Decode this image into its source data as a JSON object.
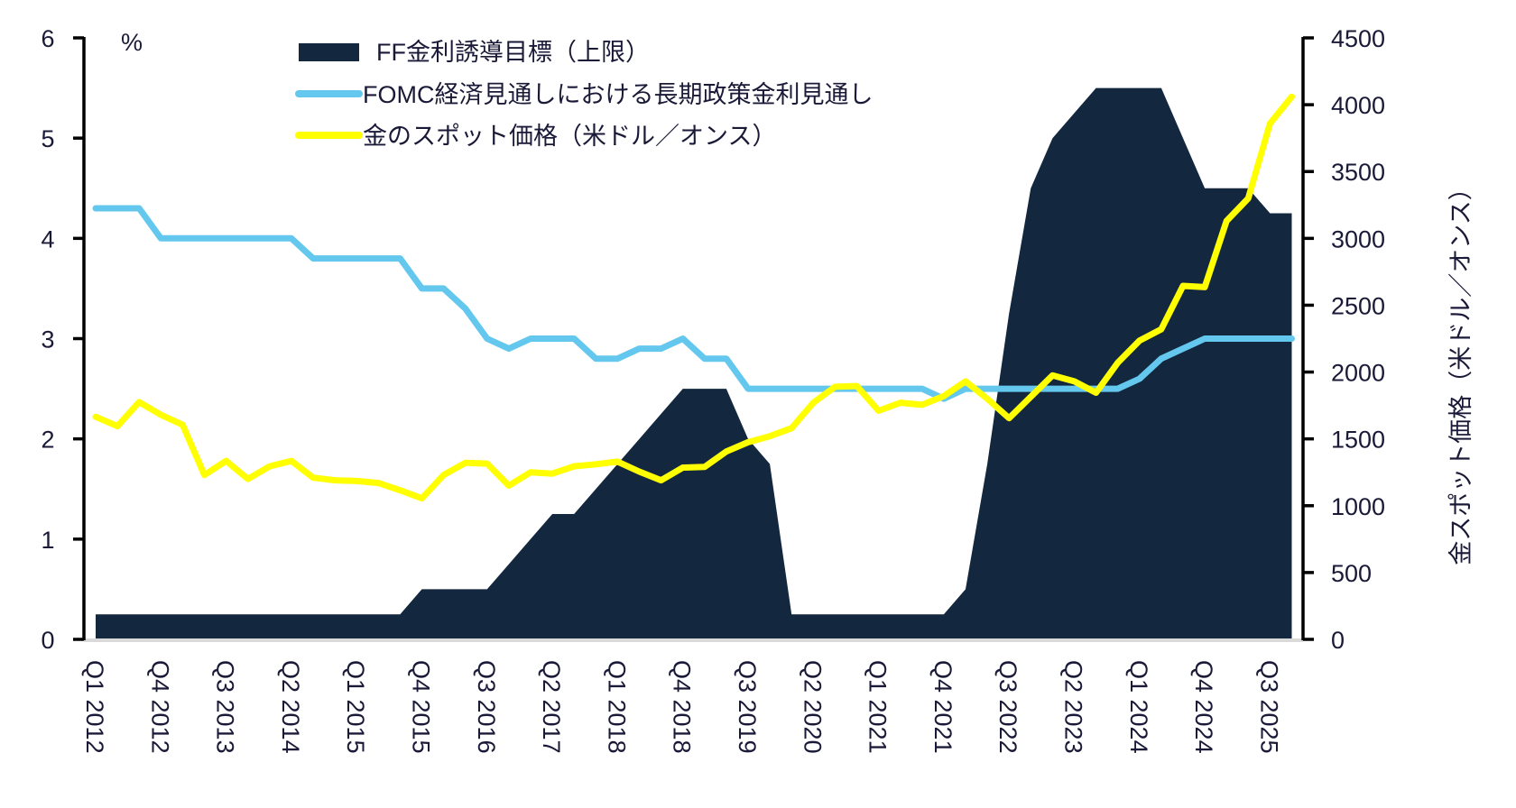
{
  "chart_data": {
    "type": "line",
    "title": "",
    "left_axis": {
      "unit_label": "%",
      "ylim": [
        0,
        6
      ],
      "ticks": [
        "0",
        "1",
        "2",
        "3",
        "4",
        "5",
        "6"
      ]
    },
    "right_axis": {
      "label": "金スポット価格（米ドル／オンス）",
      "ylim": [
        0,
        4500
      ],
      "ticks": [
        "0",
        "500",
        "1000",
        "1500",
        "2000",
        "2500",
        "3000",
        "3500",
        "4000",
        "4500"
      ]
    },
    "x": [
      "Q1 2012",
      "Q2 2012",
      "Q3 2012",
      "Q4 2012",
      "Q1 2013",
      "Q2 2013",
      "Q3 2013",
      "Q4 2013",
      "Q1 2014",
      "Q2 2014",
      "Q3 2014",
      "Q4 2014",
      "Q1 2015",
      "Q2 2015",
      "Q3 2015",
      "Q4 2015",
      "Q1 2016",
      "Q2 2016",
      "Q3 2016",
      "Q4 2016",
      "Q1 2017",
      "Q2 2017",
      "Q3 2017",
      "Q4 2017",
      "Q1 2018",
      "Q2 2018",
      "Q3 2018",
      "Q4 2018",
      "Q1 2019",
      "Q2 2019",
      "Q3 2019",
      "Q4 2019",
      "Q1 2020",
      "Q2 2020",
      "Q3 2020",
      "Q4 2020",
      "Q1 2021",
      "Q2 2021",
      "Q3 2021",
      "Q4 2021",
      "Q1 2022",
      "Q2 2022",
      "Q3 2022",
      "Q4 2022",
      "Q1 2023",
      "Q2 2023",
      "Q3 2023",
      "Q4 2023",
      "Q1 2024",
      "Q2 2024",
      "Q3 2024",
      "Q4 2024",
      "Q1 2025",
      "Q2 2025",
      "Q3 2025",
      "Q4 2025"
    ],
    "x_tick_labels": [
      "Q1 2012",
      "Q4 2012",
      "Q3 2013",
      "Q2 2014",
      "Q1 2015",
      "Q4 2015",
      "Q3 2016",
      "Q2 2017",
      "Q1 2018",
      "Q4 2018",
      "Q3 2019",
      "Q2 2020",
      "Q1 2021",
      "Q4 2021",
      "Q3 2022",
      "Q2 2023",
      "Q1 2024",
      "Q4 2024",
      "Q3 2025"
    ],
    "legend_position": "top-center",
    "series": [
      {
        "name": "FF金利誘導目標（上限）",
        "type": "area",
        "axis": "left",
        "color": "#13273f",
        "values": [
          0.25,
          0.25,
          0.25,
          0.25,
          0.25,
          0.25,
          0.25,
          0.25,
          0.25,
          0.25,
          0.25,
          0.25,
          0.25,
          0.25,
          0.25,
          0.5,
          0.5,
          0.5,
          0.5,
          0.75,
          1.0,
          1.25,
          1.25,
          1.5,
          1.75,
          2.0,
          2.25,
          2.5,
          2.5,
          2.5,
          2.0,
          1.75,
          0.25,
          0.25,
          0.25,
          0.25,
          0.25,
          0.25,
          0.25,
          0.25,
          0.5,
          1.75,
          3.25,
          4.5,
          5.0,
          5.25,
          5.5,
          5.5,
          5.5,
          5.5,
          5.0,
          4.5,
          4.5,
          4.5,
          4.25,
          4.25
        ]
      },
      {
        "name": "FOMC経済見通しにおける長期政策金利見通し",
        "type": "line",
        "axis": "left",
        "color": "#64c8ee",
        "values": [
          4.3,
          4.3,
          4.3,
          4.0,
          4.0,
          4.0,
          4.0,
          4.0,
          4.0,
          4.0,
          3.8,
          3.8,
          3.8,
          3.8,
          3.8,
          3.5,
          3.5,
          3.3,
          3.0,
          2.9,
          3.0,
          3.0,
          3.0,
          2.8,
          2.8,
          2.9,
          2.9,
          3.0,
          2.8,
          2.8,
          2.5,
          2.5,
          2.5,
          2.5,
          2.5,
          2.5,
          2.5,
          2.5,
          2.5,
          2.4,
          2.5,
          2.5,
          2.5,
          2.5,
          2.5,
          2.5,
          2.5,
          2.5,
          2.6,
          2.8,
          2.9,
          3.0,
          3.0,
          3.0,
          3.0,
          3.0
        ]
      },
      {
        "name": "金のスポット価格（米ドル／オンス）",
        "type": "line",
        "axis": "right",
        "color": "#ffff00",
        "values": [
          1665,
          1595,
          1775,
          1680,
          1605,
          1230,
          1335,
          1200,
          1295,
          1335,
          1210,
          1190,
          1185,
          1170,
          1115,
          1055,
          1230,
          1320,
          1315,
          1150,
          1250,
          1240,
          1295,
          1310,
          1330,
          1255,
          1190,
          1285,
          1290,
          1405,
          1475,
          1520,
          1580,
          1770,
          1890,
          1895,
          1710,
          1770,
          1755,
          1820,
          1930,
          1800,
          1655,
          1815,
          1975,
          1930,
          1845,
          2070,
          2235,
          2320,
          2645,
          2635,
          3130,
          3300,
          3860,
          4060
        ]
      }
    ]
  }
}
